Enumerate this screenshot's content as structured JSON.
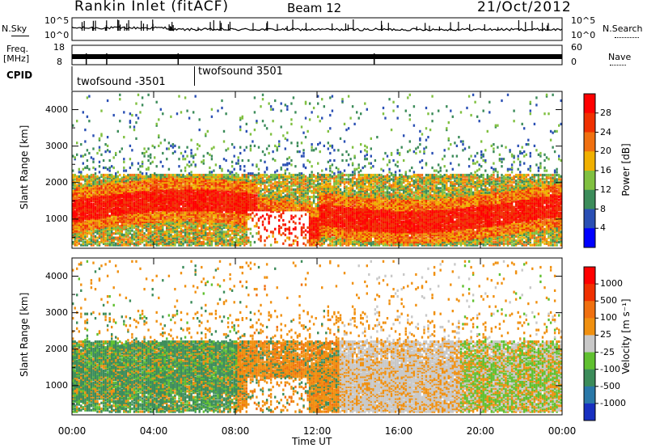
{
  "header": {
    "title": "Rankin Inlet (fitACF)",
    "beam": "Beam 12",
    "date": "21/Oct/2012"
  },
  "summary_panels": {
    "nsky_label": "N.Sky",
    "nsearch_label": "N.Search",
    "noise_ticks": [
      "10^5",
      "10^0"
    ],
    "freq_label": "Freq.",
    "freq_unit": "[MHz]",
    "freq_ticks": [
      "18",
      "8"
    ],
    "nave_label": "Nave",
    "nave_ticks": [
      "60",
      "0"
    ],
    "cpid_label": "CPID",
    "cpid_entries": [
      {
        "name": "twofsound -3501",
        "start_hour": 0
      },
      {
        "name": "twofsound 3501",
        "start_hour": 6
      }
    ]
  },
  "chart_data": [
    {
      "type": "heatmap",
      "name": "power",
      "ylabel": "Slant Range [km]",
      "ylim": [
        200,
        4500
      ],
      "xlim": [
        0,
        24
      ],
      "y_ticks": [
        1000,
        2000,
        3000,
        4000
      ],
      "colorbar": {
        "label": "Power [dB]",
        "ticks": [
          "4",
          "8",
          "12",
          "16",
          "20",
          "24",
          "28"
        ],
        "range": [
          0,
          32
        ],
        "colors": [
          "#0000ff",
          "#2a4fb4",
          "#3c8c5a",
          "#80c040",
          "#f0b000",
          "#f07010",
          "#f03000",
          "#ff0000"
        ]
      }
    },
    {
      "type": "heatmap",
      "name": "velocity",
      "ylabel": "Slant Range [km]",
      "ylim": [
        200,
        4500
      ],
      "xlim": [
        0,
        24
      ],
      "y_ticks": [
        1000,
        2000,
        3000,
        4000
      ],
      "xlabel": "Time UT",
      "x_ticks": [
        "00:00",
        "04:00",
        "08:00",
        "12:00",
        "16:00",
        "20:00",
        "00:00"
      ],
      "colorbar": {
        "label": "Velocity [m s⁻¹]",
        "ticks": [
          "1000",
          "500",
          "100",
          "25",
          "-25",
          "-100",
          "-500",
          "-1000"
        ],
        "colors": [
          "#1830c0",
          "#2a78a8",
          "#3c8c5a",
          "#60c030",
          "#c8c8c8",
          "#f09010",
          "#f07010",
          "#f03000",
          "#ff0000"
        ]
      }
    }
  ]
}
